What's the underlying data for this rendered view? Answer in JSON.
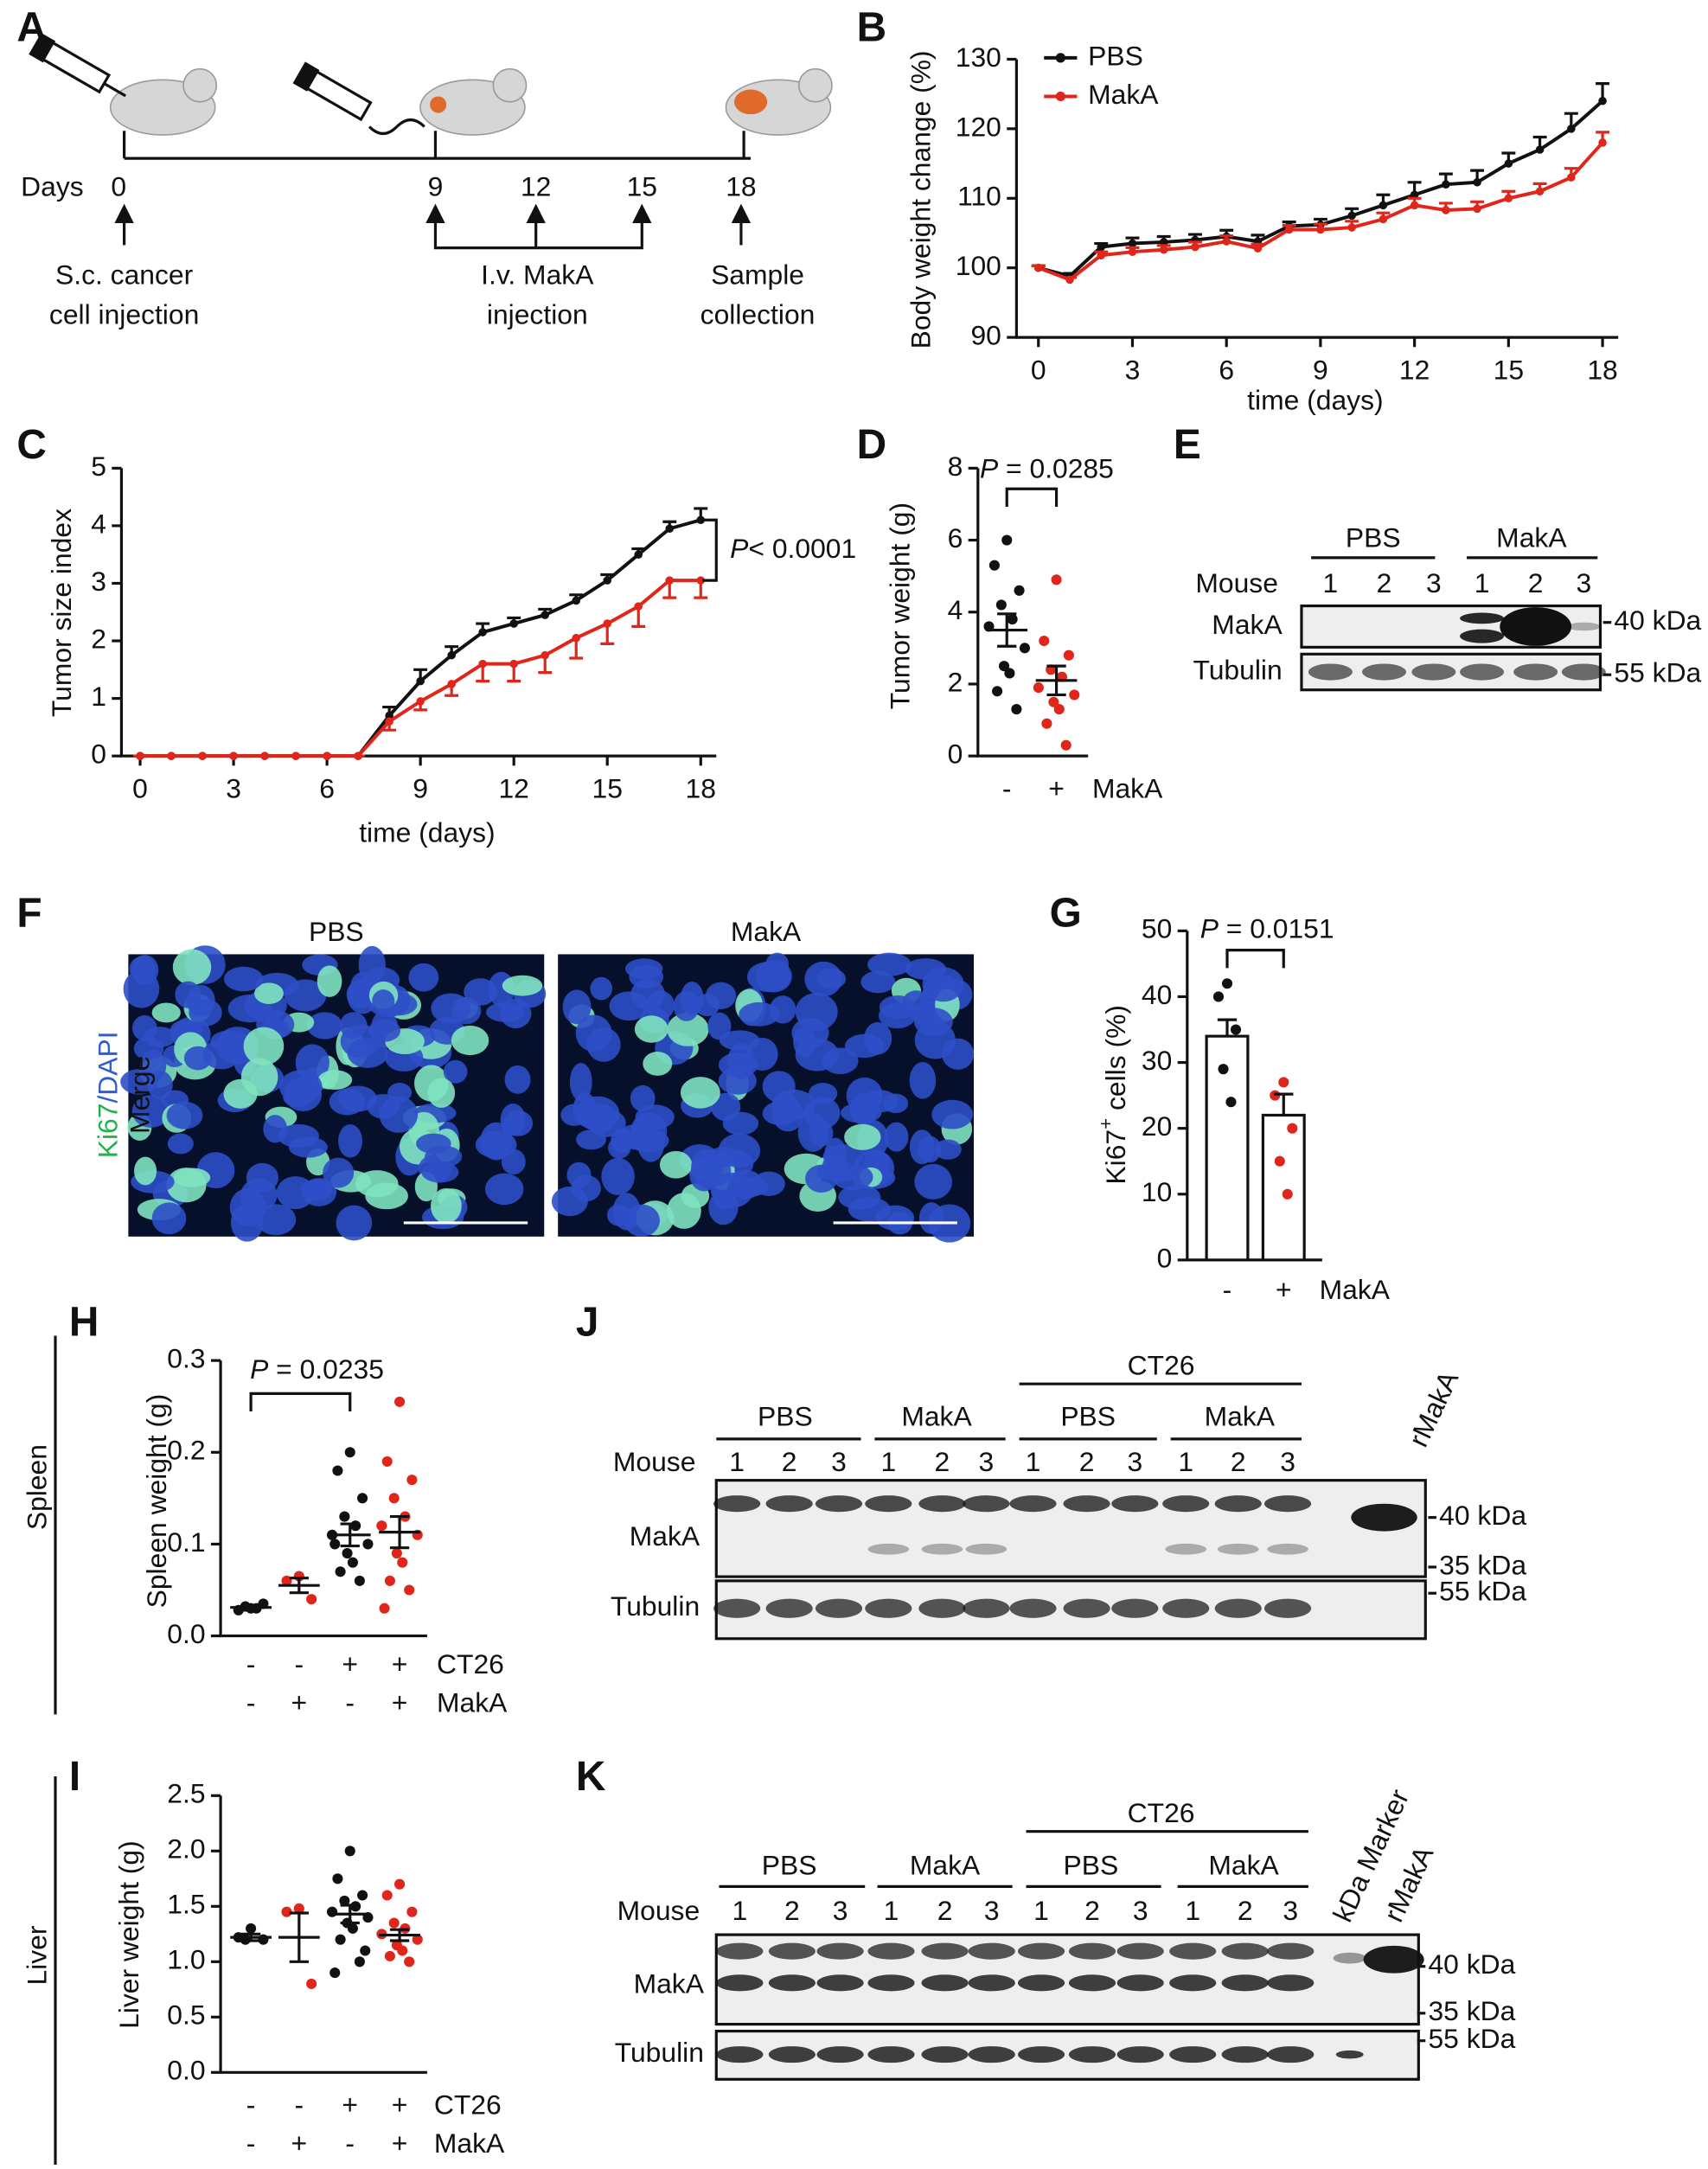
{
  "panels": [
    "A",
    "B",
    "C",
    "D",
    "E",
    "F",
    "G",
    "H",
    "I",
    "J",
    "K"
  ],
  "schematic_A": {
    "days_label": "Days",
    "days": [
      "0",
      "9",
      "12",
      "15",
      "18"
    ],
    "notes": [
      [
        "S.c. cancer",
        "cell injection"
      ],
      [
        "I.v. MakA",
        "injection"
      ],
      [
        "Sample",
        "collection"
      ]
    ]
  },
  "images_F": {
    "titles": [
      "PBS",
      "MakA"
    ],
    "stain_label": [
      "Ki67",
      "/DAPI"
    ],
    "merge_label": "Merge"
  },
  "blot_E": {
    "groups": [
      "PBS",
      "MakA"
    ],
    "mouse_label": "Mouse",
    "lanes": [
      "1",
      "2",
      "3",
      "1",
      "2",
      "3"
    ],
    "rows": [
      "MakA",
      "Tubulin"
    ],
    "markers": [
      "40 kDa",
      "55 kDa"
    ]
  },
  "blot_J": {
    "super_group": "CT26",
    "groups": [
      "PBS",
      "MakA",
      "PBS",
      "MakA"
    ],
    "mouse_label": "Mouse",
    "lanes": [
      "1",
      "2",
      "3",
      "1",
      "2",
      "3",
      "1",
      "2",
      "3",
      "1",
      "2",
      "3"
    ],
    "extra_lanes": [
      "rMakA"
    ],
    "rows": [
      "MakA",
      "Tubulin"
    ],
    "markers": [
      "40 kDa",
      "35 kDa",
      "55 kDa"
    ]
  },
  "blot_K": {
    "super_group": "CT26",
    "groups": [
      "PBS",
      "MakA",
      "PBS",
      "MakA"
    ],
    "mouse_label": "Mouse",
    "lanes": [
      "1",
      "2",
      "3",
      "1",
      "2",
      "3",
      "1",
      "2",
      "3",
      "1",
      "2",
      "3"
    ],
    "extra_lanes": [
      "kDa Marker",
      "rMakA"
    ],
    "rows": [
      "MakA",
      "Tubulin"
    ],
    "markers": [
      "40 kDa",
      "35 kDa",
      "55 kDa"
    ]
  },
  "chart_data": [
    {
      "type": "line",
      "ylabel": "Body weight change (%)",
      "xlabel": "time (days)",
      "x": [
        0,
        1,
        2,
        3,
        4,
        5,
        6,
        7,
        8,
        9,
        10,
        11,
        12,
        13,
        14,
        15,
        16,
        17,
        18
      ],
      "xlim": [
        -0.7,
        18.5
      ],
      "xticks": [
        0,
        3,
        6,
        9,
        12,
        15,
        18
      ],
      "ylim": [
        90,
        130
      ],
      "yticks": [
        90,
        100,
        110,
        120,
        130
      ],
      "legend": "top-left",
      "series": [
        {
          "name": "PBS",
          "color": "#111111",
          "values": [
            100,
            98.8,
            103,
            103.5,
            103.7,
            104,
            104.5,
            103.8,
            106,
            106.2,
            107.5,
            109,
            110.5,
            112,
            112.3,
            115,
            117,
            120,
            124
          ],
          "errors": [
            0.3,
            0.4,
            0.5,
            0.8,
            0.8,
            0.8,
            0.9,
            0.9,
            0.6,
            0.8,
            1,
            1.5,
            1.8,
            1.5,
            1.7,
            1.5,
            1.8,
            2.2,
            2.5
          ]
        },
        {
          "name": "MakA",
          "color": "#e0251b",
          "values": [
            100,
            98.3,
            101.8,
            102.3,
            102.6,
            103,
            103.8,
            102.8,
            105.5,
            105.5,
            105.8,
            107,
            109,
            108.3,
            108.5,
            110,
            111,
            113,
            118
          ],
          "errors": [
            0.3,
            0.3,
            0.5,
            0.6,
            0.6,
            0.7,
            0.8,
            0.6,
            0.6,
            0.8,
            0.9,
            0.9,
            1,
            1,
            1,
            1,
            1.1,
            1.3,
            1.5
          ]
        }
      ]
    },
    {
      "type": "line",
      "ylabel": "Tumor size index",
      "xlabel": "time (days)",
      "annotation": "P< 0.0001",
      "x": [
        0,
        1,
        2,
        3,
        4,
        5,
        6,
        7,
        8,
        9,
        10,
        11,
        12,
        13,
        14,
        15,
        16,
        17,
        18
      ],
      "xlim": [
        -0.6,
        18.5
      ],
      "xticks": [
        0,
        3,
        6,
        9,
        12,
        15,
        18
      ],
      "ylim": [
        0,
        5
      ],
      "yticks": [
        0,
        1,
        2,
        3,
        4,
        5
      ],
      "series": [
        {
          "color": "#111111",
          "values": [
            0,
            0,
            0,
            0,
            0,
            0,
            0,
            0,
            0.7,
            1.3,
            1.75,
            2.15,
            2.3,
            2.45,
            2.7,
            3.05,
            3.5,
            3.95,
            4.1
          ],
          "errors": [
            0,
            0,
            0,
            0,
            0,
            0,
            0,
            0,
            0.15,
            0.2,
            0.15,
            0.15,
            0.1,
            0.1,
            0.1,
            0.1,
            0.1,
            0.12,
            0.2
          ]
        },
        {
          "color": "#e0251b",
          "values": [
            0,
            0,
            0,
            0,
            0,
            0,
            0,
            0,
            0.6,
            0.95,
            1.25,
            1.6,
            1.6,
            1.75,
            2.05,
            2.3,
            2.6,
            3.05,
            3.05
          ],
          "errors": [
            0,
            0,
            0,
            0,
            0,
            0,
            0,
            0,
            0.15,
            0.15,
            0.2,
            0.3,
            0.3,
            0.3,
            0.35,
            0.35,
            0.35,
            0.3,
            0.3
          ]
        }
      ]
    },
    {
      "type": "dot",
      "ylabel": "Tumor weight (g)",
      "annotation": "P = 0.0285",
      "ylim": [
        0,
        8
      ],
      "yticks": [
        0,
        2,
        4,
        6,
        8
      ],
      "rows": [
        {
          "label": "MakA",
          "values": [
            "-",
            "+"
          ]
        }
      ],
      "groups": [
        {
          "color": "#111111",
          "points": [
            6.0,
            5.3,
            4.6,
            4.2,
            3.8,
            3.6,
            3.0,
            2.5,
            2.3,
            1.8,
            1.3
          ],
          "mean": 3.5,
          "sem": 0.45
        },
        {
          "color": "#e0251b",
          "points": [
            4.9,
            3.2,
            2.8,
            2.4,
            2.2,
            1.9,
            1.7,
            1.5,
            1.3,
            0.9,
            0.3
          ],
          "mean": 2.1,
          "sem": 0.4
        }
      ]
    },
    {
      "type": "bar",
      "ylabel_parts": [
        "Ki67",
        "+",
        " cells (%)"
      ],
      "annotation": "P = 0.0151",
      "ylim": [
        0,
        50
      ],
      "yticks": [
        0,
        10,
        20,
        30,
        40,
        50
      ],
      "bar_fill": "#ffffff",
      "rows": [
        {
          "label": "MakA",
          "values": [
            "-",
            "+"
          ]
        }
      ],
      "groups": [
        {
          "color": "#111111",
          "points": [
            42,
            40,
            35,
            29,
            24
          ],
          "mean": 34,
          "sem": 2.5
        },
        {
          "color": "#e0251b",
          "points": [
            27,
            25,
            20,
            15,
            10
          ],
          "mean": 22,
          "sem": 3.2
        }
      ]
    },
    {
      "type": "dot",
      "side_label": "Spleen",
      "ylabel": "Spleen weight (g)",
      "annotation": "P = 0.0235",
      "ylim": [
        0,
        0.3
      ],
      "yticks": [
        {
          "value": 0,
          "label": "0.0"
        },
        0.1,
        0.2,
        0.3
      ],
      "rows": [
        {
          "label": "CT26",
          "values": [
            "-",
            "-",
            "+",
            "+"
          ]
        },
        {
          "label": "MakA",
          "values": [
            "-",
            "+",
            "-",
            "+"
          ]
        }
      ],
      "groups": [
        {
          "color": "#111111",
          "points": [
            0.03,
            0.028,
            0.035,
            0.032,
            0.03
          ],
          "mean": 0.031,
          "sem": 0.002
        },
        {
          "color": "#e0251b",
          "points": [
            0.065,
            0.06,
            0.04
          ],
          "mean": 0.055,
          "sem": 0.008
        },
        {
          "color": "#111111",
          "points": [
            0.2,
            0.18,
            0.15,
            0.13,
            0.12,
            0.11,
            0.1,
            0.09,
            0.08,
            0.07,
            0.06,
            0.1
          ],
          "mean": 0.11,
          "sem": 0.012
        },
        {
          "color": "#e0251b",
          "points": [
            0.255,
            0.19,
            0.17,
            0.15,
            0.13,
            0.12,
            0.11,
            0.09,
            0.08,
            0.06,
            0.05,
            0.03
          ],
          "mean": 0.113,
          "sem": 0.017
        }
      ]
    },
    {
      "type": "dot",
      "side_label": "Liver",
      "ylabel": "Liver weight (g)",
      "ylim": [
        0,
        2.5
      ],
      "yticks": [
        {
          "value": 0,
          "label": "0.0"
        },
        0.5,
        {
          "value": 1,
          "label": "1.0"
        },
        1.5,
        {
          "value": 2,
          "label": "2.0"
        },
        2.5
      ],
      "rows": [
        {
          "label": "CT26",
          "values": [
            "-",
            "-",
            "+",
            "+"
          ]
        },
        {
          "label": "MakA",
          "values": [
            "-",
            "+",
            "-",
            "+"
          ]
        }
      ],
      "groups": [
        {
          "color": "#111111",
          "points": [
            1.3,
            1.22,
            1.2,
            1.2
          ],
          "mean": 1.22,
          "sem": 0.03
        },
        {
          "color": "#e0251b",
          "points": [
            1.48,
            1.45,
            0.8
          ],
          "mean": 1.22,
          "sem": 0.22
        },
        {
          "color": "#111111",
          "points": [
            2.0,
            1.75,
            1.6,
            1.55,
            1.5,
            1.45,
            1.4,
            1.35,
            1.3,
            1.2,
            1.0,
            0.9,
            1.1
          ],
          "mean": 1.43,
          "sem": 0.08
        },
        {
          "color": "#e0251b",
          "points": [
            1.7,
            1.6,
            1.45,
            1.35,
            1.3,
            1.25,
            1.2,
            1.15,
            1.1,
            1.05,
            1.0
          ],
          "mean": 1.24,
          "sem": 0.05
        }
      ]
    }
  ]
}
